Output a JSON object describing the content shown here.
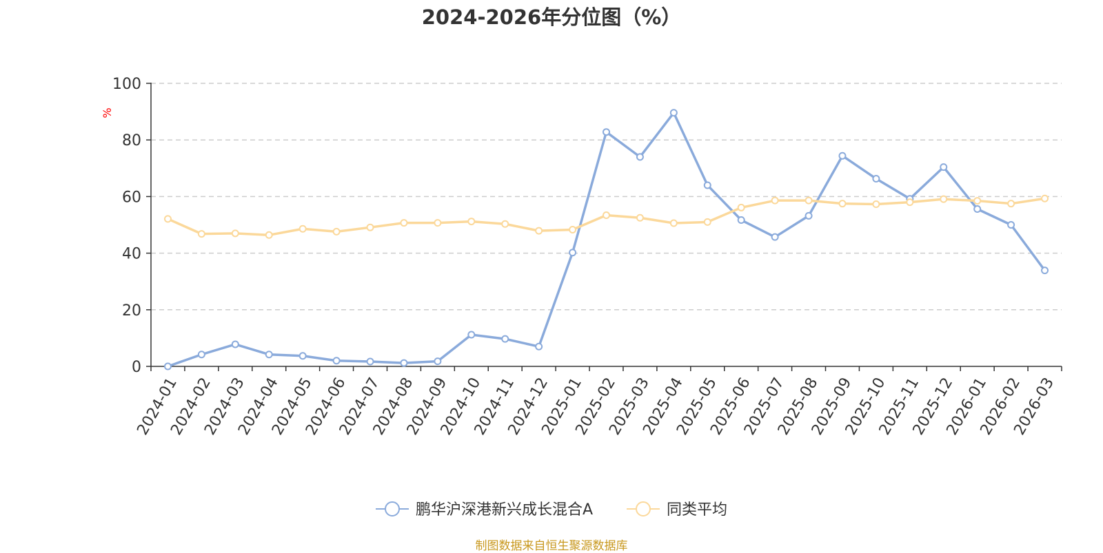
{
  "title": "2024-2026年分位图（%）",
  "footer": "制图数据来自恒生聚源数据库",
  "colors": {
    "series1": "#8aaadb",
    "series2": "#fbd89a",
    "grid": "#cccccc",
    "axis": "#333333",
    "unit": "#ff0000",
    "footer": "#c8981e"
  },
  "chart_data": {
    "type": "line",
    "title": "2024-2026年分位图（%）",
    "ylabel": "%",
    "ylim": [
      0,
      100
    ],
    "yticks": [
      0,
      20,
      40,
      60,
      80,
      100
    ],
    "grid": true,
    "legend_position": "bottom",
    "categories": [
      "2024-01",
      "2024-02",
      "2024-03",
      "2024-04",
      "2024-05",
      "2024-06",
      "2024-07",
      "2024-08",
      "2024-09",
      "2024-10",
      "2024-11",
      "2024-12",
      "2025-01",
      "2025-02",
      "2025-03",
      "2025-04",
      "2025-05",
      "2025-06",
      "2025-07",
      "2025-08",
      "2025-09",
      "2025-10",
      "2025-11",
      "2025-12",
      "2026-01",
      "2026-02",
      "2026-03"
    ],
    "series": [
      {
        "name": "鹏华沪深港新兴成长混合A",
        "values": [
          0,
          4.2,
          7.8,
          4.2,
          3.7,
          2.0,
          1.7,
          1.2,
          1.8,
          11.2,
          9.7,
          7.0,
          40.2,
          82.8,
          74.0,
          89.6,
          64.0,
          51.7,
          45.7,
          53.2,
          74.4,
          66.3,
          59.2,
          70.4,
          55.6,
          50.0,
          33.9
        ]
      },
      {
        "name": "同类平均",
        "values": [
          52.1,
          46.8,
          47.0,
          46.4,
          48.6,
          47.6,
          49.1,
          50.7,
          50.7,
          51.2,
          50.3,
          47.9,
          48.3,
          53.4,
          52.5,
          50.6,
          51.0,
          56.1,
          58.6,
          58.6,
          57.5,
          57.3,
          58.0,
          59.1,
          58.5,
          57.5,
          59.3
        ]
      }
    ]
  }
}
